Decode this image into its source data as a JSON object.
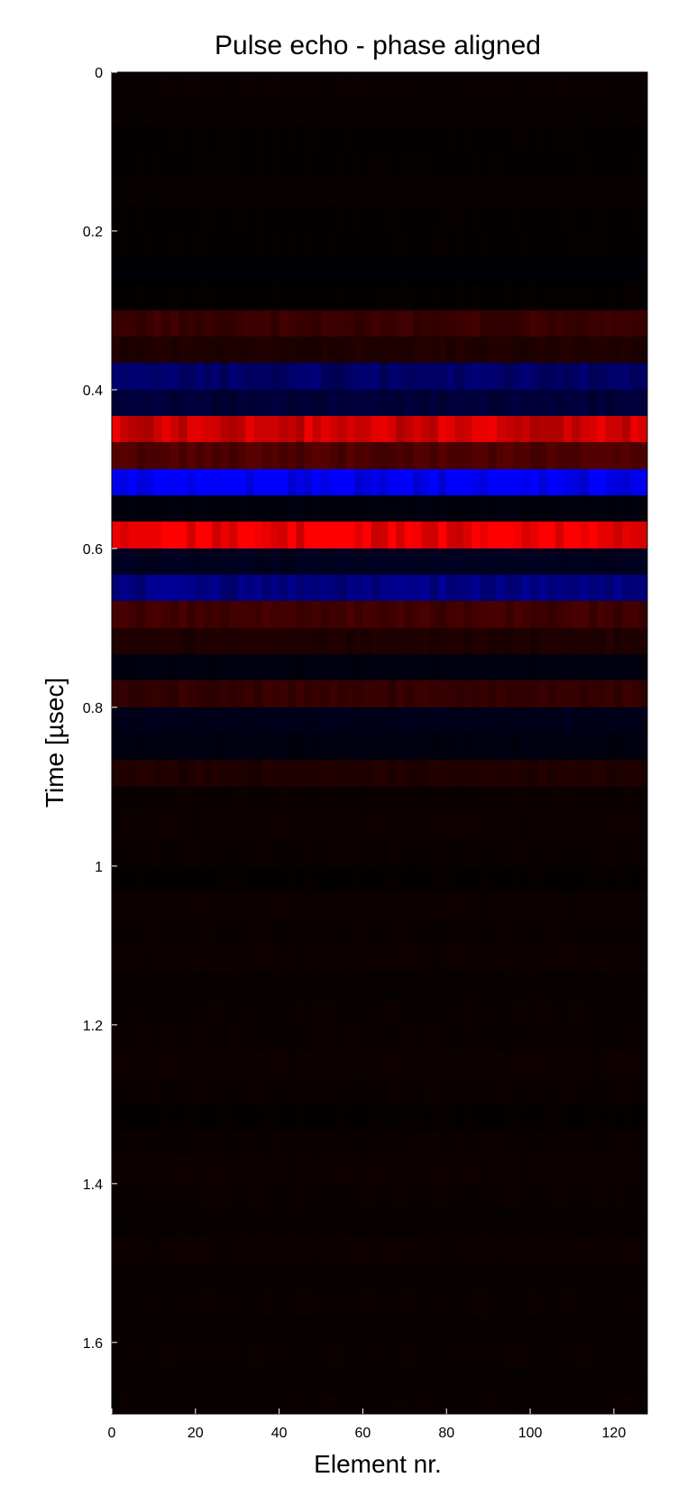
{
  "chart_data": {
    "type": "heatmap",
    "title": "Pulse echo - phase aligned",
    "xlabel": "Element nr.",
    "ylabel": "Time [µsec]",
    "xlim": [
      0,
      128
    ],
    "ylim": [
      0,
      1.69
    ],
    "y_reversed": true,
    "x_ticks": [
      0,
      20,
      40,
      60,
      80,
      100,
      120
    ],
    "x_tick_labels": [
      "0",
      "20",
      "40",
      "60",
      "80",
      "100",
      "120"
    ],
    "y_ticks": [
      0,
      0.2,
      0.4,
      0.6,
      0.8,
      1.0,
      1.2,
      1.4,
      1.6
    ],
    "y_tick_labels": [
      "0",
      "0.2",
      "0.4",
      "0.6",
      "0.8",
      "1",
      "1.2",
      "1.4",
      "1.6"
    ],
    "colormap": {
      "negative": "#0000ff",
      "zero": "#000000",
      "positive": "#ff0000"
    },
    "grid": false,
    "legend": "none",
    "time_bins": [
      {
        "t0": 0.0,
        "t1": 0.033,
        "value": 0.04
      },
      {
        "t0": 0.033,
        "t1": 0.066,
        "value": 0.03
      },
      {
        "t0": 0.066,
        "t1": 0.1,
        "value": 0.02
      },
      {
        "t0": 0.1,
        "t1": 0.133,
        "value": 0.02
      },
      {
        "t0": 0.133,
        "t1": 0.166,
        "value": 0.03
      },
      {
        "t0": 0.166,
        "t1": 0.2,
        "value": 0.02
      },
      {
        "t0": 0.2,
        "t1": 0.233,
        "value": 0.02
      },
      {
        "t0": 0.233,
        "t1": 0.266,
        "value": -0.02
      },
      {
        "t0": 0.266,
        "t1": 0.3,
        "value": 0.02
      },
      {
        "t0": 0.3,
        "t1": 0.333,
        "value": 0.22
      },
      {
        "t0": 0.333,
        "t1": 0.366,
        "value": 0.12
      },
      {
        "t0": 0.366,
        "t1": 0.4,
        "value": -0.4
      },
      {
        "t0": 0.4,
        "t1": 0.433,
        "value": -0.22
      },
      {
        "t0": 0.433,
        "t1": 0.466,
        "value": 0.8
      },
      {
        "t0": 0.466,
        "t1": 0.5,
        "value": 0.3
      },
      {
        "t0": 0.5,
        "t1": 0.533,
        "value": -0.95
      },
      {
        "t0": 0.533,
        "t1": 0.566,
        "value": -0.05
      },
      {
        "t0": 0.566,
        "t1": 0.6,
        "value": 0.95
      },
      {
        "t0": 0.6,
        "t1": 0.633,
        "value": -0.12
      },
      {
        "t0": 0.633,
        "t1": 0.666,
        "value": -0.5
      },
      {
        "t0": 0.666,
        "t1": 0.7,
        "value": 0.25
      },
      {
        "t0": 0.7,
        "t1": 0.733,
        "value": 0.12
      },
      {
        "t0": 0.733,
        "t1": 0.766,
        "value": -0.06
      },
      {
        "t0": 0.766,
        "t1": 0.8,
        "value": 0.2
      },
      {
        "t0": 0.8,
        "t1": 0.833,
        "value": -0.1
      },
      {
        "t0": 0.833,
        "t1": 0.866,
        "value": -0.06
      },
      {
        "t0": 0.866,
        "t1": 0.9,
        "value": 0.12
      },
      {
        "t0": 0.9,
        "t1": 0.933,
        "value": 0.04
      },
      {
        "t0": 0.933,
        "t1": 0.966,
        "value": 0.05
      },
      {
        "t0": 0.966,
        "t1": 1.0,
        "value": 0.04
      },
      {
        "t0": 1.0,
        "t1": 1.033,
        "value": 0.02
      },
      {
        "t0": 1.033,
        "t1": 1.066,
        "value": 0.05
      },
      {
        "t0": 1.066,
        "t1": 1.1,
        "value": 0.04
      },
      {
        "t0": 1.1,
        "t1": 1.133,
        "value": 0.05
      },
      {
        "t0": 1.133,
        "t1": 1.166,
        "value": 0.03
      },
      {
        "t0": 1.166,
        "t1": 1.2,
        "value": 0.04
      },
      {
        "t0": 1.2,
        "t1": 1.233,
        "value": 0.04
      },
      {
        "t0": 1.233,
        "t1": 1.266,
        "value": 0.05
      },
      {
        "t0": 1.266,
        "t1": 1.3,
        "value": 0.04
      },
      {
        "t0": 1.3,
        "t1": 1.333,
        "value": 0.02
      },
      {
        "t0": 1.333,
        "t1": 1.366,
        "value": 0.04
      },
      {
        "t0": 1.366,
        "t1": 1.4,
        "value": 0.05
      },
      {
        "t0": 1.4,
        "t1": 1.433,
        "value": 0.04
      },
      {
        "t0": 1.433,
        "t1": 1.466,
        "value": 0.03
      },
      {
        "t0": 1.466,
        "t1": 1.5,
        "value": 0.05
      },
      {
        "t0": 1.5,
        "t1": 1.533,
        "value": 0.03
      },
      {
        "t0": 1.533,
        "t1": 1.566,
        "value": 0.04
      },
      {
        "t0": 1.566,
        "t1": 1.6,
        "value": 0.03
      },
      {
        "t0": 1.6,
        "t1": 1.633,
        "value": 0.04
      },
      {
        "t0": 1.633,
        "t1": 1.666,
        "value": 0.03
      },
      {
        "t0": 1.666,
        "t1": 1.69,
        "value": 0.04
      }
    ]
  }
}
